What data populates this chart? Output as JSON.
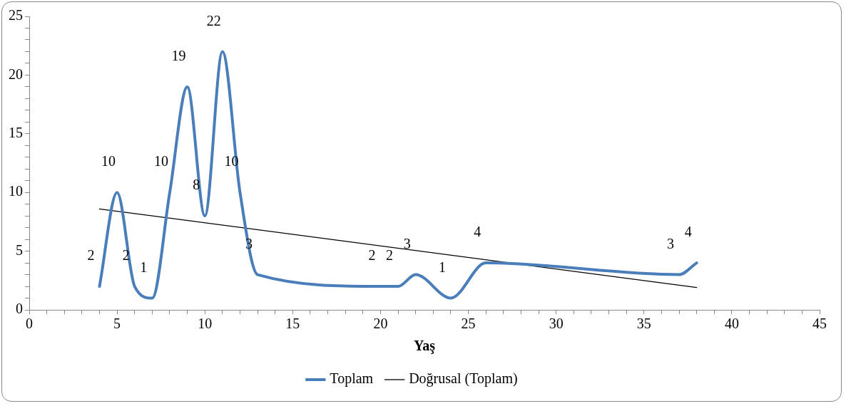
{
  "chart_data": {
    "type": "line",
    "xlabel": "Yaş",
    "x": [
      4,
      5,
      6,
      7,
      8,
      9,
      10,
      11,
      12,
      13,
      20,
      21,
      22,
      24,
      26,
      37,
      38
    ],
    "series": [
      {
        "name": "Toplam",
        "color": "#4a7ebb",
        "values": [
          2,
          10,
          2,
          1,
          10,
          19,
          8,
          22,
          10,
          3,
          2,
          2,
          3,
          1,
          4,
          3,
          4
        ],
        "value_labels": [
          "2",
          "10",
          "2",
          "1",
          "10",
          "19",
          "8",
          "22",
          "10",
          "3",
          "2",
          "2",
          "3",
          "1",
          "4",
          "3",
          "4"
        ]
      },
      {
        "name": "Doğrusal (Toplam)",
        "color": "#000000",
        "x": [
          4,
          38
        ],
        "values": [
          8.6,
          1.9
        ]
      }
    ],
    "xlim": [
      0,
      45
    ],
    "ylim": [
      0,
      25
    ],
    "xticks": [
      0,
      {
        "value": 1,
        "label": null
      },
      {
        "value": 2,
        "label": null
      },
      {
        "value": 3,
        "label": null
      },
      {
        "value": 4,
        "label": null
      },
      5,
      {
        "value": 6,
        "label": null
      },
      {
        "value": 7,
        "label": null
      },
      {
        "value": 8,
        "label": null
      },
      {
        "value": 9,
        "label": null
      },
      10,
      {
        "value": 11,
        "label": null
      },
      {
        "value": 12,
        "label": null
      },
      {
        "value": 13,
        "label": null
      },
      {
        "value": 14,
        "label": null
      },
      15,
      {
        "value": 16,
        "label": null
      },
      {
        "value": 17,
        "label": null
      },
      {
        "value": 18,
        "label": null
      },
      {
        "value": 19,
        "label": null
      },
      20,
      {
        "value": 21,
        "label": null
      },
      {
        "value": 22,
        "label": null
      },
      {
        "value": 23,
        "label": null
      },
      {
        "value": 24,
        "label": null
      },
      25,
      {
        "value": 26,
        "label": null
      },
      {
        "value": 27,
        "label": null
      },
      {
        "value": 28,
        "label": null
      },
      {
        "value": 29,
        "label": null
      },
      30,
      {
        "value": 31,
        "label": null
      },
      {
        "value": 32,
        "label": null
      },
      {
        "value": 33,
        "label": null
      },
      {
        "value": 34,
        "label": null
      },
      35,
      {
        "value": 36,
        "label": null
      },
      {
        "value": 37,
        "label": null
      },
      {
        "value": 38,
        "label": null
      },
      {
        "value": 39,
        "label": null
      },
      40,
      {
        "value": 41,
        "label": null
      },
      {
        "value": 42,
        "label": null
      },
      {
        "value": 43,
        "label": null
      },
      {
        "value": 44,
        "label": null
      },
      45
    ],
    "yticks": [
      0,
      {
        "value": 1,
        "label": null
      },
      {
        "value": 2,
        "label": null
      },
      {
        "value": 3,
        "label": null
      },
      {
        "value": 4,
        "label": null
      },
      5,
      {
        "value": 6,
        "label": null
      },
      {
        "value": 7,
        "label": null
      },
      {
        "value": 8,
        "label": null
      },
      {
        "value": 9,
        "label": null
      },
      10,
      {
        "value": 11,
        "label": null
      },
      {
        "value": 12,
        "label": null
      },
      {
        "value": 13,
        "label": null
      },
      {
        "value": 14,
        "label": null
      },
      15,
      {
        "value": 16,
        "label": null
      },
      {
        "value": 17,
        "label": null
      },
      {
        "value": 18,
        "label": null
      },
      {
        "value": 19,
        "label": null
      },
      20,
      {
        "value": 21,
        "label": null
      },
      {
        "value": 22,
        "label": null
      },
      {
        "value": 23,
        "label": null
      },
      {
        "value": 24,
        "label": null
      },
      25
    ],
    "grid": false,
    "legend": "bottom",
    "marker": "none",
    "line_style": "solid"
  }
}
